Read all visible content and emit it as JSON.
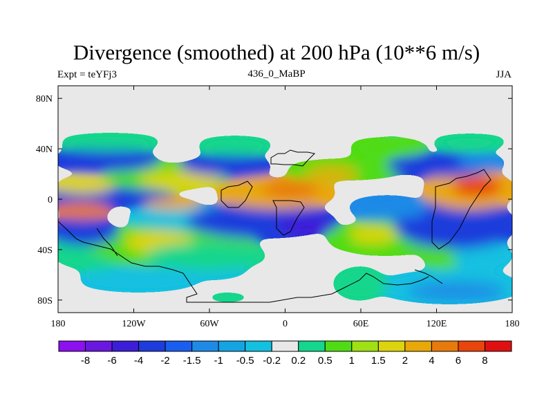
{
  "title": "Divergence (smoothed) at 200 hPa (10**6 m/s)",
  "subtitle_left": "Expt = teYFj3",
  "subtitle_center": "436_0_MaBP",
  "subtitle_right": "JJA",
  "map": {
    "lon_range": [
      -180,
      180
    ],
    "lat_range": [
      -90,
      90
    ],
    "lon_ticks": [
      {
        "value": -180,
        "label": "180"
      },
      {
        "value": -120,
        "label": "120W"
      },
      {
        "value": -60,
        "label": "60W"
      },
      {
        "value": 0,
        "label": "0"
      },
      {
        "value": 60,
        "label": "60E"
      },
      {
        "value": 120,
        "label": "120E"
      },
      {
        "value": 180,
        "label": "180"
      }
    ],
    "lat_ticks": [
      {
        "value": 80,
        "label": "80N"
      },
      {
        "value": 40,
        "label": "40N"
      },
      {
        "value": 0,
        "label": "0"
      },
      {
        "value": -40,
        "label": "40S"
      },
      {
        "value": -80,
        "label": "80S"
      }
    ],
    "missing_color": "#e8e8e8"
  },
  "colorbar": {
    "colors": [
      "#8c10f0",
      "#6a18e0",
      "#3c1ed8",
      "#1e3cdc",
      "#1a5ef0",
      "#1e8ae6",
      "#14a4e4",
      "#14c0e0",
      "#e8e8e8",
      "#14d68c",
      "#50dc14",
      "#a0e014",
      "#dcd40c",
      "#e8a808",
      "#e87a0c",
      "#e8440c",
      "#e01010"
    ],
    "labels": [
      "-8",
      "-6",
      "-4",
      "-2",
      "-1.5",
      "-1",
      "-0.5",
      "-0.2",
      "0.2",
      "0.5",
      "1",
      "1.5",
      "2",
      "4",
      "6",
      "8"
    ]
  },
  "chart_data": {
    "type": "heatmap",
    "title": "Divergence (smoothed) at 200 hPa (10**6 m/s)",
    "variable": "divergence",
    "level": "200 hPa",
    "season": "JJA",
    "xlabel": "",
    "ylabel": "",
    "xlim": [
      -180,
      180
    ],
    "ylim": [
      -90,
      90
    ],
    "levels": [
      -8,
      -6,
      -4,
      -2,
      -1.5,
      -1,
      -0.5,
      -0.2,
      0.2,
      0.5,
      1,
      1.5,
      2,
      4,
      6,
      8
    ],
    "features": [
      {
        "region": "60S-15S, 180-150W",
        "approx_value": 1.2
      },
      {
        "region": "45S-30S, 150W-80W",
        "approx_value": 0.8
      },
      {
        "region": "10S-0, 180-120W",
        "approx_value": -3.5
      },
      {
        "region": "15N-30N, 180-60W",
        "approx_value": -2.5
      },
      {
        "region": "15N-35N, 120W-30W",
        "approx_value": 1.5
      },
      {
        "region": "5S-10N, 130W-40W",
        "approx_value": -1.0
      },
      {
        "region": "0-20N, 30W-90E",
        "approx_value": 4.0
      },
      {
        "region": "25S-10S, 40W-50E",
        "approx_value": -3.0
      },
      {
        "region": "40S-25S, 60E-110E",
        "approx_value": 1.2
      },
      {
        "region": "30N-45N, 40E-100E",
        "approx_value": 0.8
      },
      {
        "region": "20N-35N, 90E-180",
        "approx_value": -2.5
      },
      {
        "region": "0-25N, 110E-180",
        "approx_value": 4.5
      },
      {
        "region": "30S-5S, 90E-180",
        "approx_value": -3.5
      },
      {
        "region": "60S-45S, 110E-180",
        "approx_value": 0.5
      },
      {
        "region": "80S-65S, 70E-180",
        "approx_value": -1.0
      },
      {
        "region": "70S-55S, 180-100W",
        "approx_value": -0.8
      },
      {
        "region": "75S-55S, 40E-90E",
        "approx_value": 0.5
      }
    ]
  }
}
